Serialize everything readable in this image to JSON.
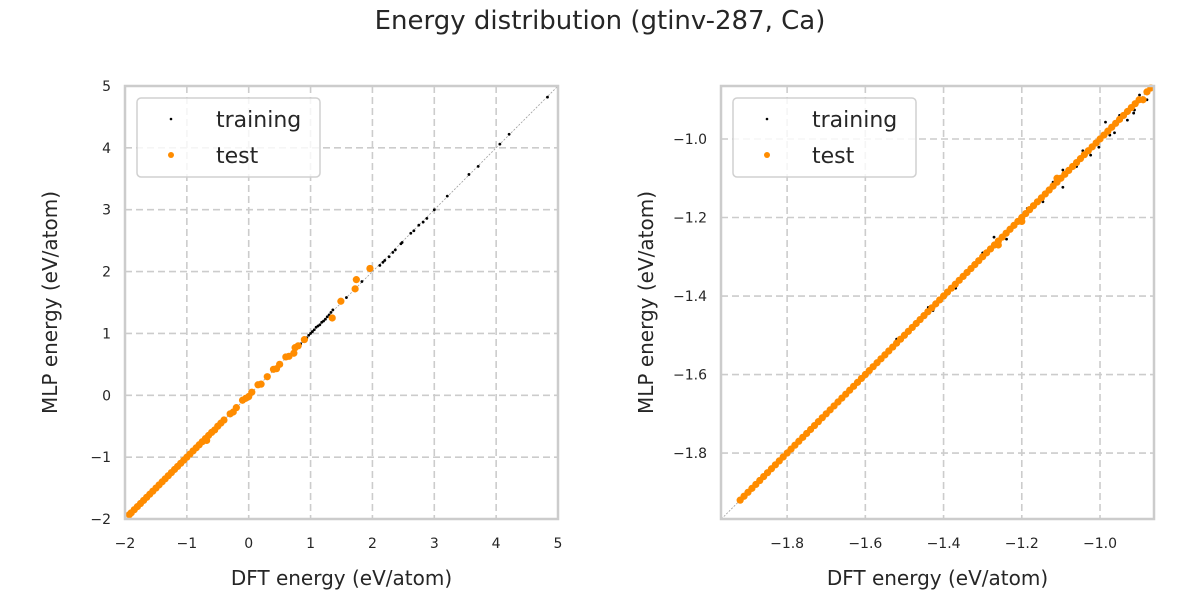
{
  "title": "Energy distribution (gtinv-287, Ca)",
  "colors": {
    "training": "#000000",
    "test": "#ff8c00",
    "grid": "#cccccc",
    "spine": "#cccccc",
    "diagonal": "#a0a0a0"
  },
  "chart_data": [
    {
      "type": "scatter",
      "xlabel": "DFT energy (eV/atom)",
      "ylabel": "MLP energy (eV/atom)",
      "xlim": [
        -2,
        5
      ],
      "ylim": [
        -2,
        5
      ],
      "xticks": [
        -2,
        -1,
        0,
        1,
        2,
        3,
        4,
        5
      ],
      "yticks": [
        -2,
        -1,
        0,
        1,
        2,
        3,
        4,
        5
      ],
      "xtick_labels": [
        "−2",
        "−1",
        "0",
        "1",
        "2",
        "3",
        "4",
        "5"
      ],
      "ytick_labels": [
        "−2",
        "−1",
        "0",
        "1",
        "2",
        "3",
        "4",
        "5"
      ],
      "grid": true,
      "diagonal": true,
      "legend_placement": "top-left",
      "series": [
        {
          "name": "training",
          "points": [
            [
              4.83,
              4.82
            ],
            [
              4.21,
              4.22
            ],
            [
              4.06,
              4.06
            ],
            [
              3.71,
              3.7
            ],
            [
              3.56,
              3.57
            ],
            [
              3.21,
              3.22
            ],
            [
              3.0,
              3.0
            ],
            [
              2.88,
              2.86
            ],
            [
              2.82,
              2.8
            ],
            [
              2.75,
              2.75
            ],
            [
              2.67,
              2.66
            ],
            [
              2.62,
              2.62
            ],
            [
              2.48,
              2.47
            ],
            [
              2.46,
              2.45
            ],
            [
              2.37,
              2.35
            ],
            [
              2.33,
              2.31
            ],
            [
              2.27,
              2.24
            ],
            [
              2.2,
              2.18
            ],
            [
              2.17,
              2.15
            ],
            [
              2.12,
              2.1
            ],
            [
              1.83,
              1.84
            ],
            [
              1.58,
              1.58
            ],
            [
              1.36,
              1.38
            ],
            [
              1.33,
              1.34
            ],
            [
              1.3,
              1.3
            ],
            [
              1.27,
              1.27
            ],
            [
              1.24,
              1.23
            ],
            [
              1.21,
              1.2
            ],
            [
              1.18,
              1.18
            ],
            [
              1.15,
              1.14
            ],
            [
              1.12,
              1.12
            ],
            [
              1.09,
              1.1
            ],
            [
              1.06,
              1.06
            ],
            [
              1.03,
              1.03
            ],
            [
              1.0,
              1.0
            ],
            [
              0.97,
              0.97
            ],
            [
              0.94,
              0.93
            ],
            [
              0.91,
              0.91
            ],
            [
              0.88,
              0.87
            ],
            [
              0.84,
              0.83
            ]
          ]
        },
        {
          "name": "test",
          "points": [
            [
              1.96,
              2.05
            ],
            [
              1.74,
              1.87
            ],
            [
              1.72,
              1.72
            ],
            [
              1.49,
              1.52
            ],
            [
              1.35,
              1.25
            ],
            [
              0.9,
              0.9
            ],
            [
              0.73,
              0.68
            ],
            [
              0.8,
              0.8
            ],
            [
              0.75,
              0.77
            ],
            [
              0.65,
              0.63
            ],
            [
              0.6,
              0.62
            ],
            [
              0.5,
              0.5
            ],
            [
              0.45,
              0.43
            ],
            [
              0.4,
              0.42
            ],
            [
              0.3,
              0.3
            ],
            [
              0.2,
              0.18
            ],
            [
              0.15,
              0.17
            ],
            [
              0.05,
              0.05
            ],
            [
              0.0,
              -0.02
            ],
            [
              -0.05,
              -0.05
            ],
            [
              -0.1,
              -0.08
            ],
            [
              -0.2,
              -0.2
            ],
            [
              -0.25,
              -0.27
            ],
            [
              -0.3,
              -0.3
            ],
            [
              -0.4,
              -0.4
            ],
            [
              -0.45,
              -0.45
            ],
            [
              -0.5,
              -0.5
            ],
            [
              -0.55,
              -0.56
            ],
            [
              -0.6,
              -0.6
            ],
            [
              -0.68,
              -0.73
            ],
            [
              -0.65,
              -0.65
            ],
            [
              -0.7,
              -0.7
            ],
            [
              -0.75,
              -0.75
            ],
            [
              -0.8,
              -0.8
            ],
            [
              -0.85,
              -0.85
            ],
            [
              -0.9,
              -0.9
            ],
            [
              -0.95,
              -0.95
            ],
            [
              -1.0,
              -1.0
            ],
            [
              -1.05,
              -1.05
            ],
            [
              -1.1,
              -1.1
            ],
            [
              -1.15,
              -1.15
            ],
            [
              -1.2,
              -1.2
            ],
            [
              -1.25,
              -1.25
            ],
            [
              -1.3,
              -1.3
            ],
            [
              -1.35,
              -1.35
            ],
            [
              -1.4,
              -1.4
            ],
            [
              -1.45,
              -1.45
            ],
            [
              -1.5,
              -1.5
            ],
            [
              -1.55,
              -1.55
            ],
            [
              -1.6,
              -1.6
            ],
            [
              -1.65,
              -1.65
            ],
            [
              -1.7,
              -1.7
            ],
            [
              -1.75,
              -1.75
            ],
            [
              -1.8,
              -1.8
            ],
            [
              -1.85,
              -1.85
            ],
            [
              -1.9,
              -1.9
            ],
            [
              -1.93,
              -1.93
            ]
          ]
        }
      ]
    },
    {
      "type": "scatter",
      "xlabel": "DFT energy (eV/atom)",
      "ylabel": "MLP energy (eV/atom)",
      "xlim": [
        -1.969,
        -0.862
      ],
      "ylim": [
        -1.968,
        -0.865
      ],
      "xticks": [
        -1.8,
        -1.6,
        -1.4,
        -1.2,
        -1.0
      ],
      "yticks": [
        -1.8,
        -1.6,
        -1.4,
        -1.2,
        -1.0
      ],
      "xtick_labels": [
        "−1.8",
        "−1.6",
        "−1.4",
        "−1.2",
        "−1.0"
      ],
      "ytick_labels": [
        "−1.8",
        "−1.6",
        "−1.4",
        "−1.2",
        "−1.0"
      ],
      "grid": true,
      "diagonal": true,
      "legend_placement": "top-left",
      "series": [
        {
          "name": "training",
          "points": [
            [
              -0.986,
              -0.957
            ],
            [
              -0.963,
              -0.984
            ],
            [
              -1.003,
              -1.021
            ],
            [
              -1.024,
              -1.041
            ],
            [
              -1.044,
              -1.03
            ],
            [
              -1.095,
              -1.123
            ],
            [
              -1.095,
              -1.079
            ],
            [
              -1.146,
              -1.16
            ],
            [
              -1.186,
              -1.177
            ],
            [
              -1.239,
              -1.255
            ],
            [
              -1.271,
              -1.25
            ],
            [
              -1.369,
              -1.38
            ],
            [
              -1.439,
              -1.429
            ],
            [
              -1.427,
              -1.437
            ],
            [
              -1.52,
              -1.51
            ],
            [
              -0.93,
              -0.952
            ],
            [
              -0.912,
              -0.926
            ],
            [
              -0.899,
              -0.888
            ],
            [
              -0.914,
              -0.934
            ],
            [
              -0.95,
              -0.94
            ],
            [
              -0.975,
              -0.99
            ],
            [
              -1.06,
              -1.07
            ],
            [
              -1.12,
              -1.11
            ],
            [
              -1.2,
              -1.21
            ],
            [
              -1.3,
              -1.29
            ],
            [
              -0.88,
              -0.9
            ]
          ]
        },
        {
          "name": "test",
          "points": [
            [
              -1.92,
              -1.92
            ],
            [
              -1.91,
              -1.91
            ],
            [
              -1.9,
              -1.9
            ],
            [
              -1.89,
              -1.89
            ],
            [
              -1.88,
              -1.88
            ],
            [
              -1.87,
              -1.87
            ],
            [
              -1.86,
              -1.86
            ],
            [
              -1.85,
              -1.85
            ],
            [
              -1.84,
              -1.84
            ],
            [
              -1.83,
              -1.83
            ],
            [
              -1.82,
              -1.82
            ],
            [
              -1.81,
              -1.81
            ],
            [
              -1.8,
              -1.8
            ],
            [
              -1.79,
              -1.79
            ],
            [
              -1.78,
              -1.78
            ],
            [
              -1.77,
              -1.77
            ],
            [
              -1.76,
              -1.76
            ],
            [
              -1.75,
              -1.75
            ],
            [
              -1.74,
              -1.74
            ],
            [
              -1.73,
              -1.73
            ],
            [
              -1.72,
              -1.72
            ],
            [
              -1.71,
              -1.71
            ],
            [
              -1.7,
              -1.7
            ],
            [
              -1.69,
              -1.69
            ],
            [
              -1.68,
              -1.68
            ],
            [
              -1.67,
              -1.67
            ],
            [
              -1.66,
              -1.66
            ],
            [
              -1.65,
              -1.65
            ],
            [
              -1.64,
              -1.64
            ],
            [
              -1.63,
              -1.63
            ],
            [
              -1.62,
              -1.62
            ],
            [
              -1.61,
              -1.61
            ],
            [
              -1.6,
              -1.6
            ],
            [
              -1.59,
              -1.59
            ],
            [
              -1.58,
              -1.58
            ],
            [
              -1.57,
              -1.57
            ],
            [
              -1.56,
              -1.56
            ],
            [
              -1.55,
              -1.55
            ],
            [
              -1.54,
              -1.54
            ],
            [
              -1.53,
              -1.53
            ],
            [
              -1.52,
              -1.52
            ],
            [
              -1.51,
              -1.51
            ],
            [
              -1.5,
              -1.5
            ],
            [
              -1.49,
              -1.49
            ],
            [
              -1.48,
              -1.48
            ],
            [
              -1.47,
              -1.47
            ],
            [
              -1.46,
              -1.46
            ],
            [
              -1.45,
              -1.45
            ],
            [
              -1.44,
              -1.44
            ],
            [
              -1.43,
              -1.43
            ],
            [
              -1.42,
              -1.42
            ],
            [
              -1.41,
              -1.41
            ],
            [
              -1.4,
              -1.4
            ],
            [
              -1.39,
              -1.39
            ],
            [
              -1.38,
              -1.38
            ],
            [
              -1.37,
              -1.37
            ],
            [
              -1.36,
              -1.36
            ],
            [
              -1.35,
              -1.35
            ],
            [
              -1.34,
              -1.34
            ],
            [
              -1.33,
              -1.33
            ],
            [
              -1.32,
              -1.32
            ],
            [
              -1.31,
              -1.31
            ],
            [
              -1.3,
              -1.3
            ],
            [
              -1.29,
              -1.29
            ],
            [
              -1.28,
              -1.28
            ],
            [
              -1.27,
              -1.27
            ],
            [
              -1.26,
              -1.26
            ],
            [
              -1.25,
              -1.25
            ],
            [
              -1.24,
              -1.24
            ],
            [
              -1.23,
              -1.23
            ],
            [
              -1.22,
              -1.22
            ],
            [
              -1.21,
              -1.21
            ],
            [
              -1.2,
              -1.2
            ],
            [
              -1.19,
              -1.19
            ],
            [
              -1.18,
              -1.18
            ],
            [
              -1.17,
              -1.17
            ],
            [
              -1.16,
              -1.16
            ],
            [
              -1.15,
              -1.15
            ],
            [
              -1.14,
              -1.14
            ],
            [
              -1.13,
              -1.13
            ],
            [
              -1.12,
              -1.12
            ],
            [
              -1.11,
              -1.11
            ],
            [
              -1.1,
              -1.1
            ],
            [
              -1.09,
              -1.09
            ],
            [
              -1.08,
              -1.08
            ],
            [
              -1.07,
              -1.07
            ],
            [
              -1.06,
              -1.06
            ],
            [
              -1.05,
              -1.05
            ],
            [
              -1.04,
              -1.04
            ],
            [
              -1.03,
              -1.03
            ],
            [
              -1.02,
              -1.02
            ],
            [
              -1.01,
              -1.01
            ],
            [
              -1.0,
              -1.0
            ],
            [
              -0.99,
              -0.99
            ],
            [
              -0.98,
              -0.98
            ],
            [
              -0.97,
              -0.97
            ],
            [
              -0.96,
              -0.96
            ],
            [
              -0.95,
              -0.95
            ],
            [
              -0.94,
              -0.94
            ],
            [
              -0.93,
              -0.93
            ],
            [
              -0.92,
              -0.92
            ],
            [
              -0.91,
              -0.91
            ],
            [
              -0.9,
              -0.9
            ],
            [
              -0.89,
              -0.9
            ],
            [
              -0.88,
              -0.88
            ],
            [
              -0.87,
              -0.87
            ],
            [
              -1.26,
              -1.27
            ],
            [
              -1.11,
              -1.1
            ],
            [
              -1.2,
              -1.21
            ]
          ]
        }
      ]
    }
  ]
}
